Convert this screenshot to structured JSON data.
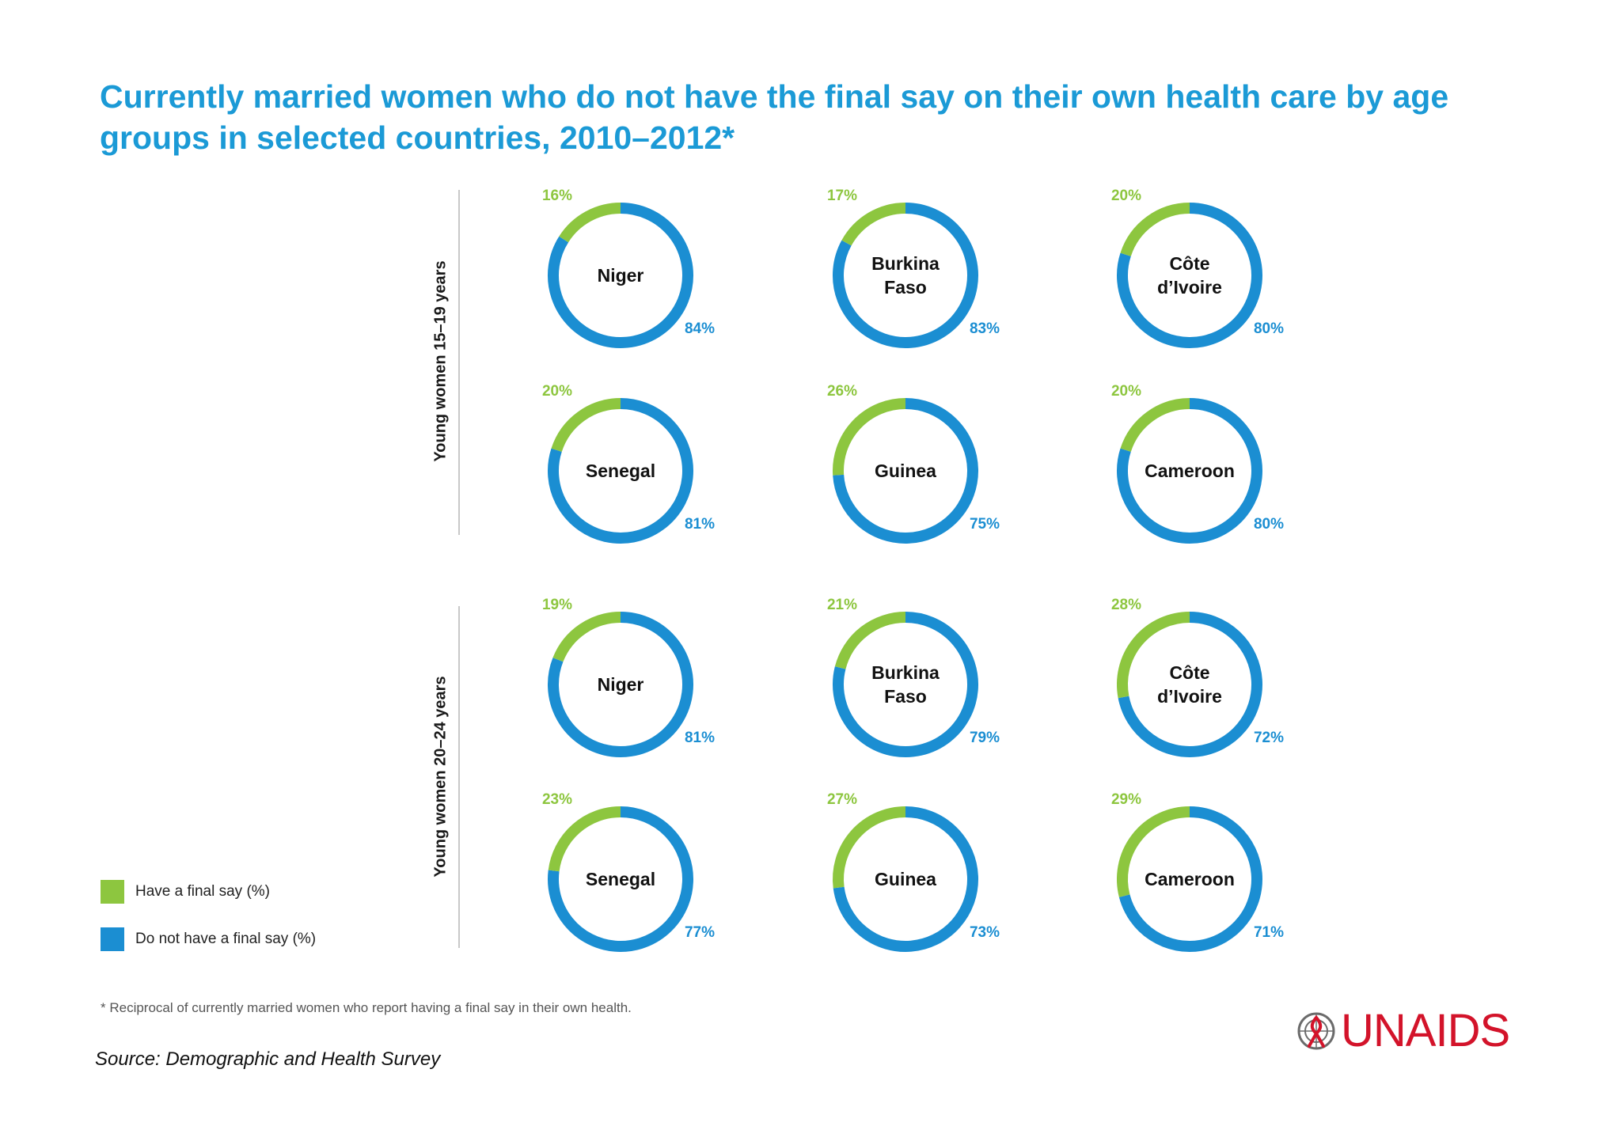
{
  "title": "Currently married women who do not have the final say on their own health care by age groups in selected countries, 2010–2012*",
  "colors": {
    "have": "#8dc63f",
    "not_have": "#1b8ed2",
    "title": "#1b9ad6",
    "brand": "#d3132a"
  },
  "legend": [
    {
      "label": "Have a final say (%)",
      "color": "#8dc63f"
    },
    {
      "label": "Do not have a final say (%)",
      "color": "#1b8ed2"
    }
  ],
  "chart_data": {
    "type": "pie",
    "variant": "donut",
    "series_names": [
      "Have a final say (%)",
      "Do not have a final say (%)"
    ],
    "groups": [
      {
        "label": "Young women  15–19 years",
        "rows": [
          [
            {
              "country": [
                "Niger"
              ],
              "have": 16,
              "not_have": 84
            },
            {
              "country": [
                "Burkina",
                "Faso"
              ],
              "have": 17,
              "not_have": 83
            },
            {
              "country": [
                "Côte",
                "d’Ivoire"
              ],
              "have": 20,
              "not_have": 80
            }
          ],
          [
            {
              "country": [
                "Senegal"
              ],
              "have": 20,
              "not_have": 81
            },
            {
              "country": [
                "Guinea"
              ],
              "have": 26,
              "not_have": 75
            },
            {
              "country": [
                "Cameroon"
              ],
              "have": 20,
              "not_have": 80
            }
          ]
        ]
      },
      {
        "label": "Young women  20–24 years",
        "rows": [
          [
            {
              "country": [
                "Niger"
              ],
              "have": 19,
              "not_have": 81
            },
            {
              "country": [
                "Burkina",
                "Faso"
              ],
              "have": 21,
              "not_have": 79
            },
            {
              "country": [
                "Côte",
                "d’Ivoire"
              ],
              "have": 28,
              "not_have": 72
            }
          ],
          [
            {
              "country": [
                "Senegal"
              ],
              "have": 23,
              "not_have": 77
            },
            {
              "country": [
                "Guinea"
              ],
              "have": 27,
              "not_have": 73
            },
            {
              "country": [
                "Cameroon"
              ],
              "have": 29,
              "not_have": 71
            }
          ]
        ]
      }
    ]
  },
  "footnote": "* Reciprocal of currently married women who report having a final say in their own health.",
  "source": "Source: Demographic and Health Survey",
  "logo": {
    "text": "UNAIDS",
    "icon": "un-emblem-ribbon-icon"
  }
}
